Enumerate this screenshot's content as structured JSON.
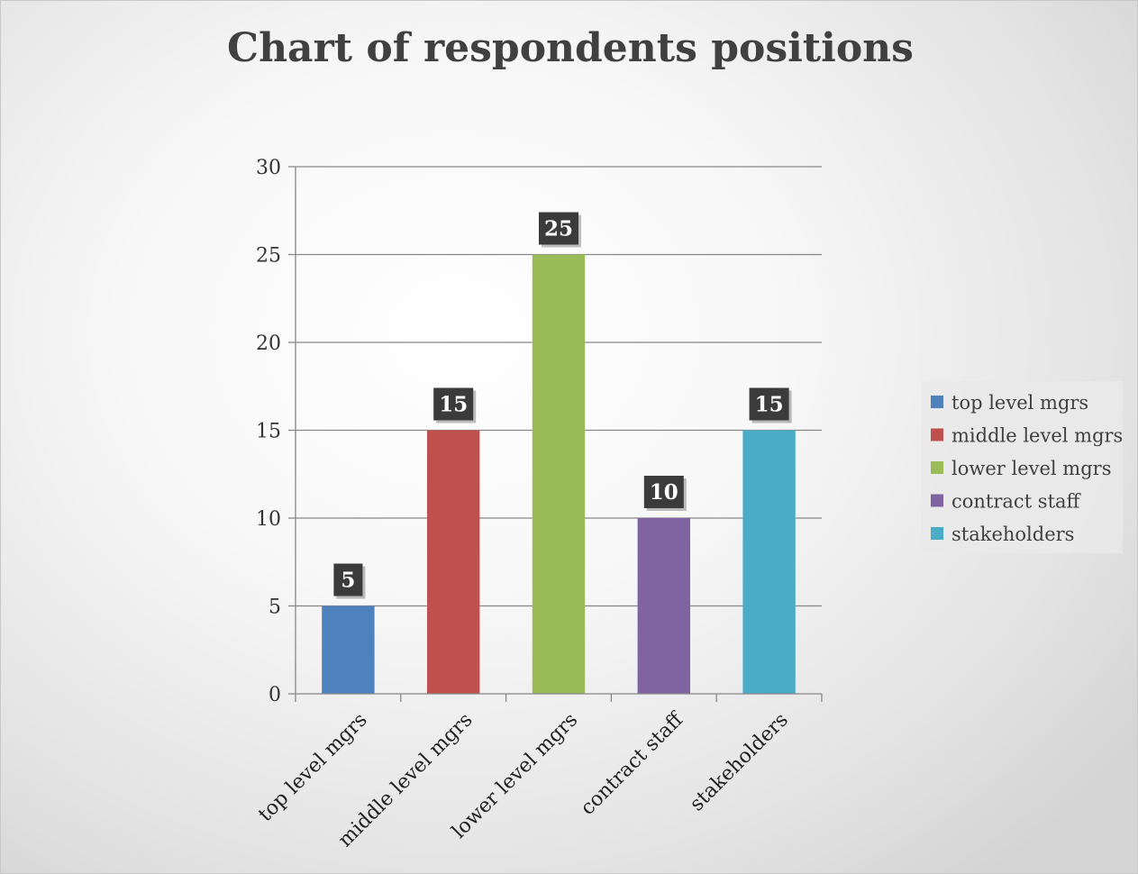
{
  "chart_data": {
    "type": "bar",
    "title": "Chart of respondents positions",
    "categories": [
      "top level mgrs",
      "middle level mgrs",
      "lower level mgrs",
      "contract staff",
      "stakeholders"
    ],
    "values": [
      5,
      15,
      25,
      10,
      15
    ],
    "colors": [
      "#4f81bd",
      "#c0504d",
      "#9bbb59",
      "#8064a2",
      "#4bacc6"
    ],
    "ylim": [
      0,
      30
    ],
    "yticks": [
      0,
      5,
      10,
      15,
      20,
      25,
      30
    ],
    "grid": true,
    "legend": {
      "position": "right",
      "entries": [
        "top level mgrs",
        "middle level mgrs",
        "lower level mgrs",
        "contract staff",
        "stakeholders"
      ]
    },
    "data_labels": true
  }
}
